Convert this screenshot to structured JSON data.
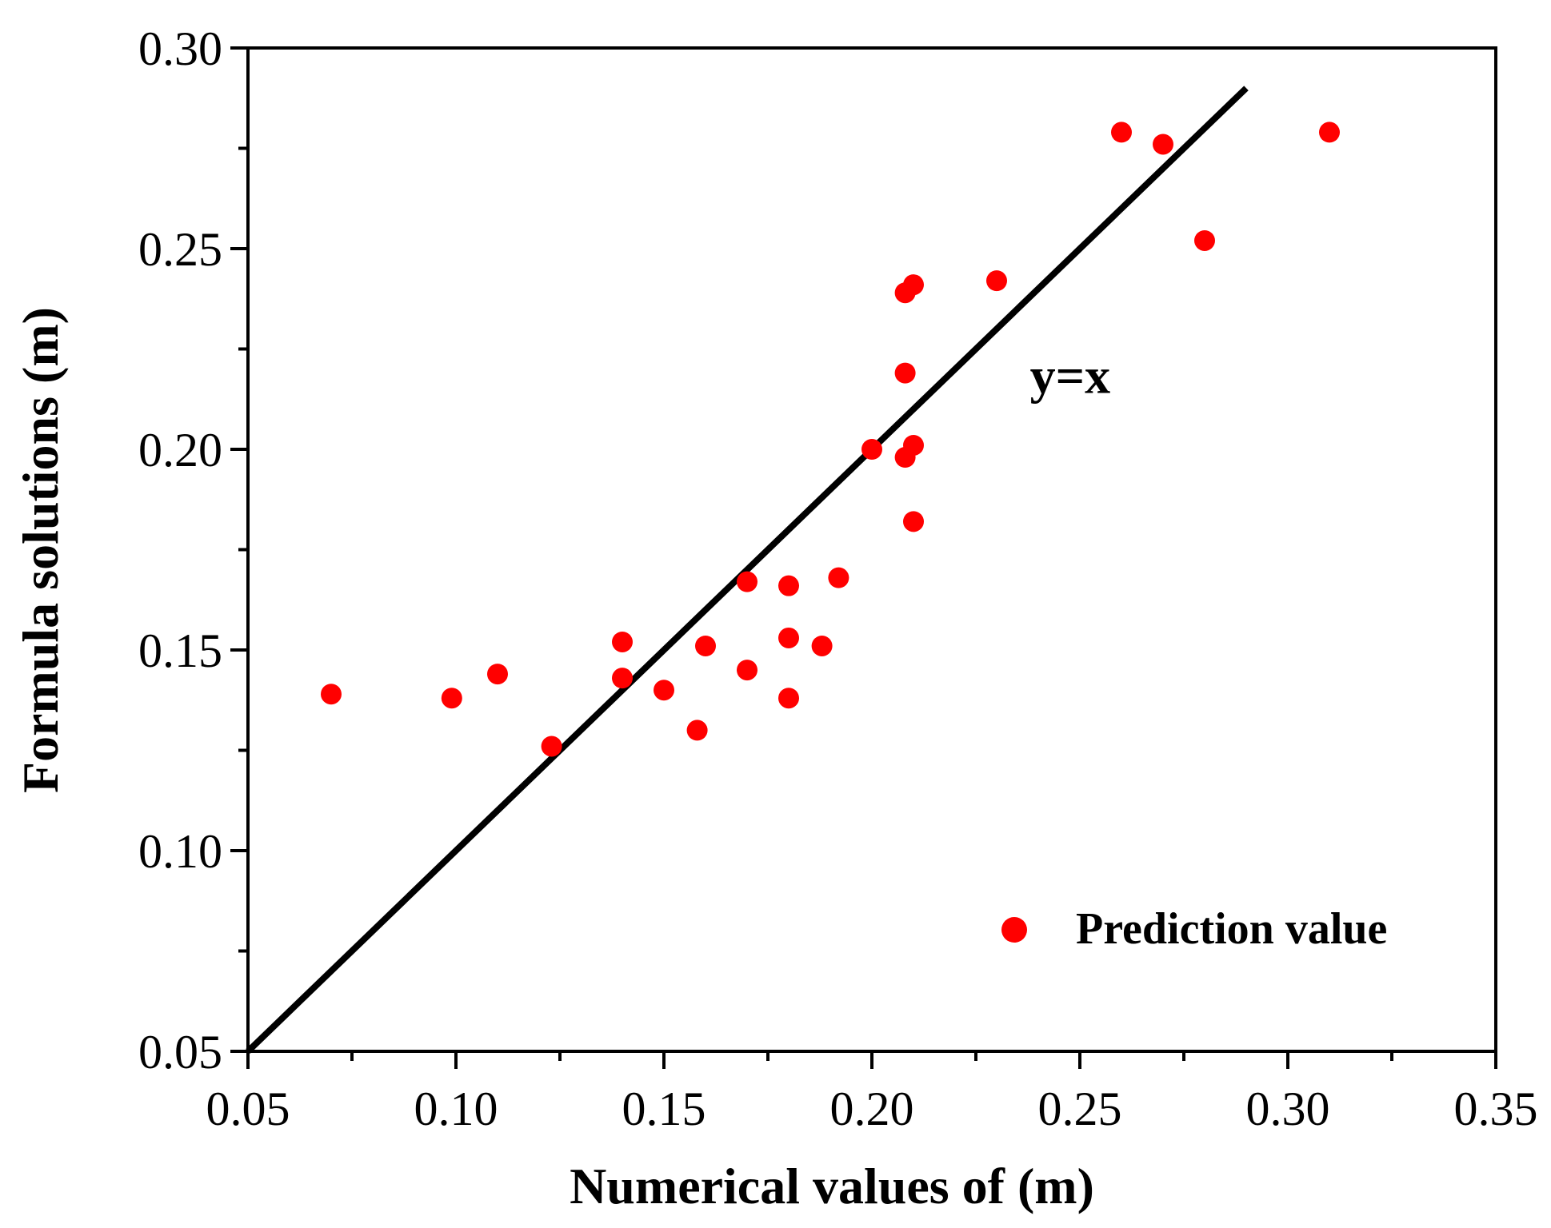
{
  "chart_data": {
    "type": "scatter",
    "xlabel": "Numerical values of (m)",
    "ylabel": "Formula solutions (m)",
    "xlim": [
      0.05,
      0.35
    ],
    "ylim": [
      0.05,
      0.3
    ],
    "x_major_ticks": [
      0.05,
      0.1,
      0.15,
      0.2,
      0.25,
      0.3,
      0.35
    ],
    "x_tick_labels": [
      "0.05",
      "0.10",
      "0.15",
      "0.20",
      "0.25",
      "0.30",
      "0.35"
    ],
    "y_major_ticks": [
      0.05,
      0.1,
      0.15,
      0.2,
      0.25,
      0.3
    ],
    "y_tick_labels": [
      "0.05",
      "0.10",
      "0.15",
      "0.20",
      "0.25",
      "0.30"
    ],
    "grid": false,
    "legend_position": "bottom-right",
    "series": [
      {
        "name": "Prediction value",
        "marker": "circle",
        "color": "#ff0000",
        "points": [
          {
            "x": 0.07,
            "y": 0.139
          },
          {
            "x": 0.099,
            "y": 0.138
          },
          {
            "x": 0.11,
            "y": 0.144
          },
          {
            "x": 0.123,
            "y": 0.126
          },
          {
            "x": 0.14,
            "y": 0.152
          },
          {
            "x": 0.14,
            "y": 0.143
          },
          {
            "x": 0.15,
            "y": 0.14
          },
          {
            "x": 0.158,
            "y": 0.13
          },
          {
            "x": 0.16,
            "y": 0.151
          },
          {
            "x": 0.17,
            "y": 0.167
          },
          {
            "x": 0.17,
            "y": 0.145
          },
          {
            "x": 0.18,
            "y": 0.166
          },
          {
            "x": 0.18,
            "y": 0.153
          },
          {
            "x": 0.18,
            "y": 0.138
          },
          {
            "x": 0.188,
            "y": 0.151
          },
          {
            "x": 0.192,
            "y": 0.168
          },
          {
            "x": 0.2,
            "y": 0.2
          },
          {
            "x": 0.208,
            "y": 0.219
          },
          {
            "x": 0.208,
            "y": 0.198
          },
          {
            "x": 0.208,
            "y": 0.239
          },
          {
            "x": 0.21,
            "y": 0.241
          },
          {
            "x": 0.21,
            "y": 0.201
          },
          {
            "x": 0.21,
            "y": 0.182
          },
          {
            "x": 0.23,
            "y": 0.242
          },
          {
            "x": 0.26,
            "y": 0.279
          },
          {
            "x": 0.27,
            "y": 0.276
          },
          {
            "x": 0.28,
            "y": 0.252
          },
          {
            "x": 0.31,
            "y": 0.279
          }
        ]
      }
    ],
    "reference_line": {
      "label": "y=x",
      "color": "#000000",
      "from": {
        "x": 0.05,
        "y": 0.05
      },
      "to": {
        "x": 0.29,
        "y": 0.29
      },
      "label_at": {
        "x": 0.238,
        "y": 0.214
      }
    },
    "legend": {
      "label": "Prediction value"
    }
  }
}
